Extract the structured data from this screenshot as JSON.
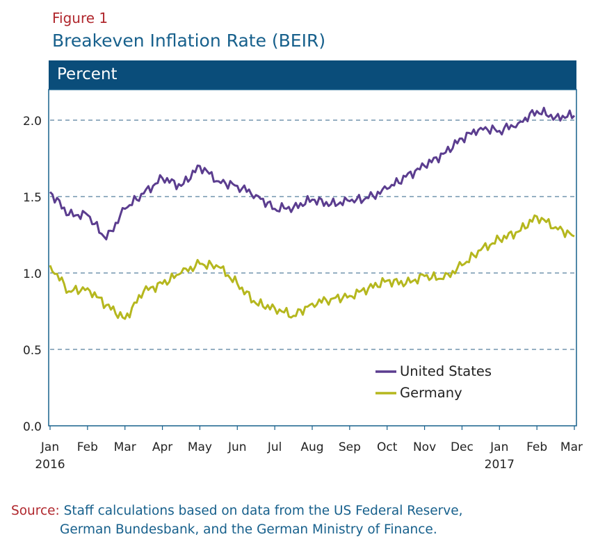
{
  "figure_label": "Figure 1",
  "title": "Breakeven Inflation Rate (BEIR)",
  "unit_band": "Percent",
  "source": {
    "label": "Source:",
    "line1": "Staff calculations based on data from the US Federal Reserve,",
    "line2": "German Bundesbank, and the German Ministry of Finance."
  },
  "colors": {
    "united_states": "#5b3d8f",
    "germany": "#b5b71e",
    "grid": "#2b5f86",
    "band": "#0a4d7a",
    "frame": "#17608c"
  },
  "chart_data": {
    "type": "line",
    "title": "Breakeven Inflation Rate (BEIR)",
    "ylabel": "Percent",
    "xlabel": "",
    "ylim": [
      0.0,
      2.2
    ],
    "yticks": [
      "0.0",
      "0.5",
      "1.0",
      "1.5",
      "2.0"
    ],
    "xticks": [
      {
        "month": "Jan",
        "year": "2016"
      },
      {
        "month": "Feb",
        "year": ""
      },
      {
        "month": "Mar",
        "year": ""
      },
      {
        "month": "Apr",
        "year": ""
      },
      {
        "month": "May",
        "year": ""
      },
      {
        "month": "Jun",
        "year": ""
      },
      {
        "month": "Jul",
        "year": ""
      },
      {
        "month": "Aug",
        "year": ""
      },
      {
        "month": "Sep",
        "year": ""
      },
      {
        "month": "Oct",
        "year": ""
      },
      {
        "month": "Nov",
        "year": ""
      },
      {
        "month": "Dec",
        "year": ""
      },
      {
        "month": "Jan",
        "year": "2017"
      },
      {
        "month": "Feb",
        "year": ""
      },
      {
        "month": "Mar",
        "year": ""
      }
    ],
    "grid": "horizontal dashed",
    "legend": "bottom-right",
    "x": [
      "Jan 2016",
      "mid Jan 2016",
      "Feb 2016",
      "mid Feb 2016",
      "Mar 2016",
      "mid Mar 2016",
      "Apr 2016",
      "mid Apr 2016",
      "May 2016",
      "mid May 2016",
      "Jun 2016",
      "mid Jun 2016",
      "Jul 2016",
      "mid Jul 2016",
      "Aug 2016",
      "mid Aug 2016",
      "Sep 2016",
      "mid Sep 2016",
      "Oct 2016",
      "mid Oct 2016",
      "Nov 2016",
      "mid Nov 2016",
      "Dec 2016",
      "mid Dec 2016",
      "Jan 2017",
      "mid Jan 2017",
      "Feb 2017",
      "mid Feb 2017",
      "Mar 2017"
    ],
    "series": [
      {
        "name": "United States",
        "values": [
          1.53,
          1.38,
          1.38,
          1.22,
          1.42,
          1.52,
          1.62,
          1.57,
          1.7,
          1.6,
          1.57,
          1.51,
          1.42,
          1.43,
          1.48,
          1.45,
          1.47,
          1.49,
          1.55,
          1.63,
          1.7,
          1.78,
          1.88,
          1.95,
          1.93,
          1.98,
          2.06,
          2.02,
          2.03
        ]
      },
      {
        "name": "Germany",
        "values": [
          1.05,
          0.88,
          0.9,
          0.79,
          0.7,
          0.88,
          0.93,
          1.0,
          1.06,
          1.04,
          0.93,
          0.8,
          0.77,
          0.72,
          0.8,
          0.83,
          0.85,
          0.9,
          0.95,
          0.93,
          0.98,
          0.96,
          1.05,
          1.15,
          1.22,
          1.27,
          1.37,
          1.3,
          1.24
        ]
      }
    ]
  }
}
